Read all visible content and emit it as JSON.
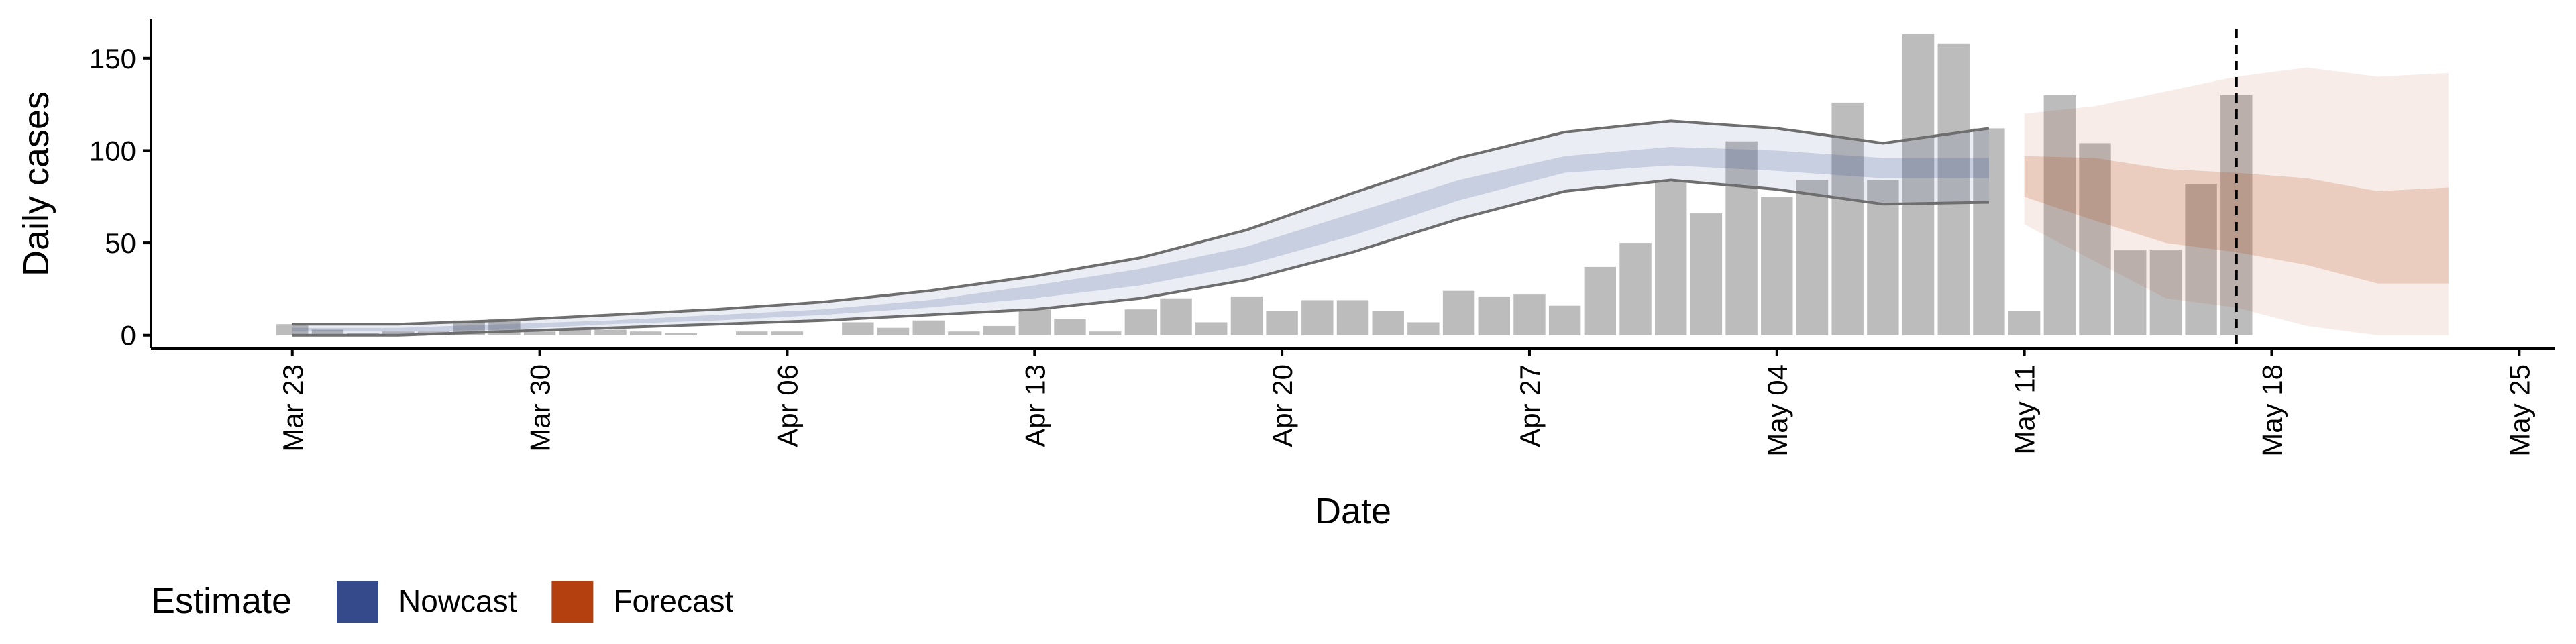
{
  "chart_data": {
    "type": "bar",
    "x_label": "Date",
    "y_label": "Daily cases",
    "legend_title": "Estimate",
    "color": "#a6a6a6",
    "categories": [
      "Mar 23",
      "Mar 24",
      "Mar 25",
      "Mar 26",
      "Mar 27",
      "Mar 28",
      "Mar 29",
      "Mar 30",
      "Mar 31",
      "Apr 01",
      "Apr 02",
      "Apr 03",
      "Apr 04",
      "Apr 05",
      "Apr 06",
      "Apr 07",
      "Apr 08",
      "Apr 09",
      "Apr 10",
      "Apr 11",
      "Apr 12",
      "Apr 13",
      "Apr 14",
      "Apr 15",
      "Apr 16",
      "Apr 17",
      "Apr 18",
      "Apr 19",
      "Apr 20",
      "Apr 21",
      "Apr 22",
      "Apr 23",
      "Apr 24",
      "Apr 25",
      "Apr 26",
      "Apr 27",
      "Apr 28",
      "Apr 29",
      "Apr 30",
      "May 01",
      "May 02",
      "May 03",
      "May 04",
      "May 05",
      "May 06",
      "May 07",
      "May 08",
      "May 09",
      "May 10",
      "May 11",
      "May 12",
      "May 13",
      "May 14",
      "May 15",
      "May 16",
      "May 17"
    ],
    "values": [
      6,
      3,
      1,
      2,
      2,
      8,
      9,
      2,
      3,
      3,
      2,
      1,
      0,
      2,
      2,
      0,
      7,
      4,
      8,
      2,
      5,
      14,
      9,
      2,
      14,
      20,
      7,
      21,
      13,
      19,
      19,
      13,
      7,
      24,
      21,
      22,
      16,
      37,
      50,
      83,
      66,
      105,
      75,
      84,
      126,
      84,
      163,
      158,
      112,
      13,
      130,
      104,
      46,
      46,
      82,
      130
    ],
    "series": [
      {
        "name": "Nowcast",
        "color": "#344a8a",
        "x": [
          "Mar 23",
          "Mar 26",
          "Mar 29",
          "Apr 01",
          "Apr 04",
          "Apr 07",
          "Apr 10",
          "Apr 13",
          "Apr 16",
          "Apr 19",
          "Apr 22",
          "Apr 25",
          "Apr 28",
          "May 01",
          "May 04",
          "May 07",
          "May 10"
        ],
        "upper90": [
          6,
          6,
          8,
          11,
          14,
          18,
          24,
          32,
          42,
          57,
          77,
          96,
          110,
          116,
          112,
          104,
          112
        ],
        "lower90": [
          0,
          0,
          2,
          4,
          6,
          8,
          11,
          14,
          20,
          30,
          45,
          63,
          78,
          84,
          79,
          71,
          72
        ],
        "upper50": [
          4,
          4,
          6,
          8,
          11,
          14,
          19,
          27,
          36,
          48,
          66,
          84,
          97,
          102,
          100,
          96,
          96
        ],
        "lower50": [
          2,
          2,
          3,
          6,
          8,
          11,
          15,
          20,
          27,
          38,
          54,
          73,
          88,
          92,
          89,
          85,
          85
        ]
      },
      {
        "name": "Forecast",
        "color": "#b5400f",
        "x": [
          "May 11",
          "May 13",
          "May 15",
          "May 17",
          "May 19",
          "May 21",
          "May 23"
        ],
        "upper90": [
          120,
          124,
          132,
          140,
          145,
          140,
          142
        ],
        "lower90": [
          60,
          40,
          20,
          15,
          5,
          0,
          0
        ],
        "upper50": [
          97,
          96,
          90,
          88,
          85,
          78,
          80
        ],
        "lower50": [
          75,
          62,
          50,
          45,
          38,
          28,
          28
        ]
      }
    ],
    "vline": "May 17",
    "xlim": [
      "Mar 19",
      "May 26"
    ],
    "xticks": [
      "Mar 23",
      "Mar 30",
      "Apr 06",
      "Apr 13",
      "Apr 20",
      "Apr 27",
      "May 04",
      "May 11",
      "May 18",
      "May 25"
    ],
    "ylim": [
      -7,
      171
    ],
    "yticks": [
      0,
      50,
      100,
      150
    ]
  }
}
